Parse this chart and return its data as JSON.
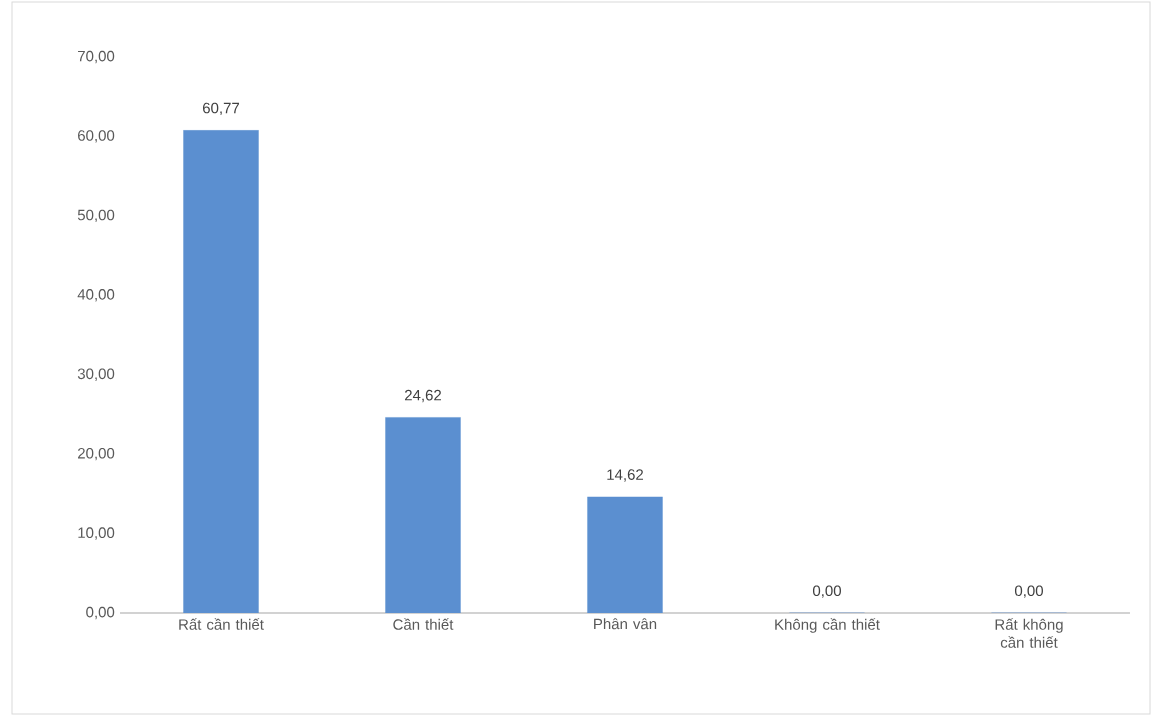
{
  "chart_data": {
    "type": "bar",
    "categories": [
      "Rất cần thiết",
      "Cần thiết",
      "Phân vân",
      "Không cần thiết",
      "Rất không cần thiết"
    ],
    "values": [
      60.77,
      24.62,
      14.62,
      0,
      0
    ],
    "value_labels": [
      "60,77",
      "24,62",
      "14,62",
      "0,00",
      "0,00"
    ],
    "color": "#5b8fd0",
    "ylim": [
      0,
      70
    ],
    "yticks": [
      {
        "value": 0,
        "label": "0,00"
      },
      {
        "value": 10,
        "label": "10,00"
      },
      {
        "value": 20,
        "label": "20,00"
      },
      {
        "value": 30,
        "label": "30,00"
      },
      {
        "value": 40,
        "label": "40,00"
      },
      {
        "value": 50,
        "label": "50,00"
      },
      {
        "value": 60,
        "label": "60,00"
      },
      {
        "value": 70,
        "label": "70,00"
      }
    ],
    "grid": false
  }
}
